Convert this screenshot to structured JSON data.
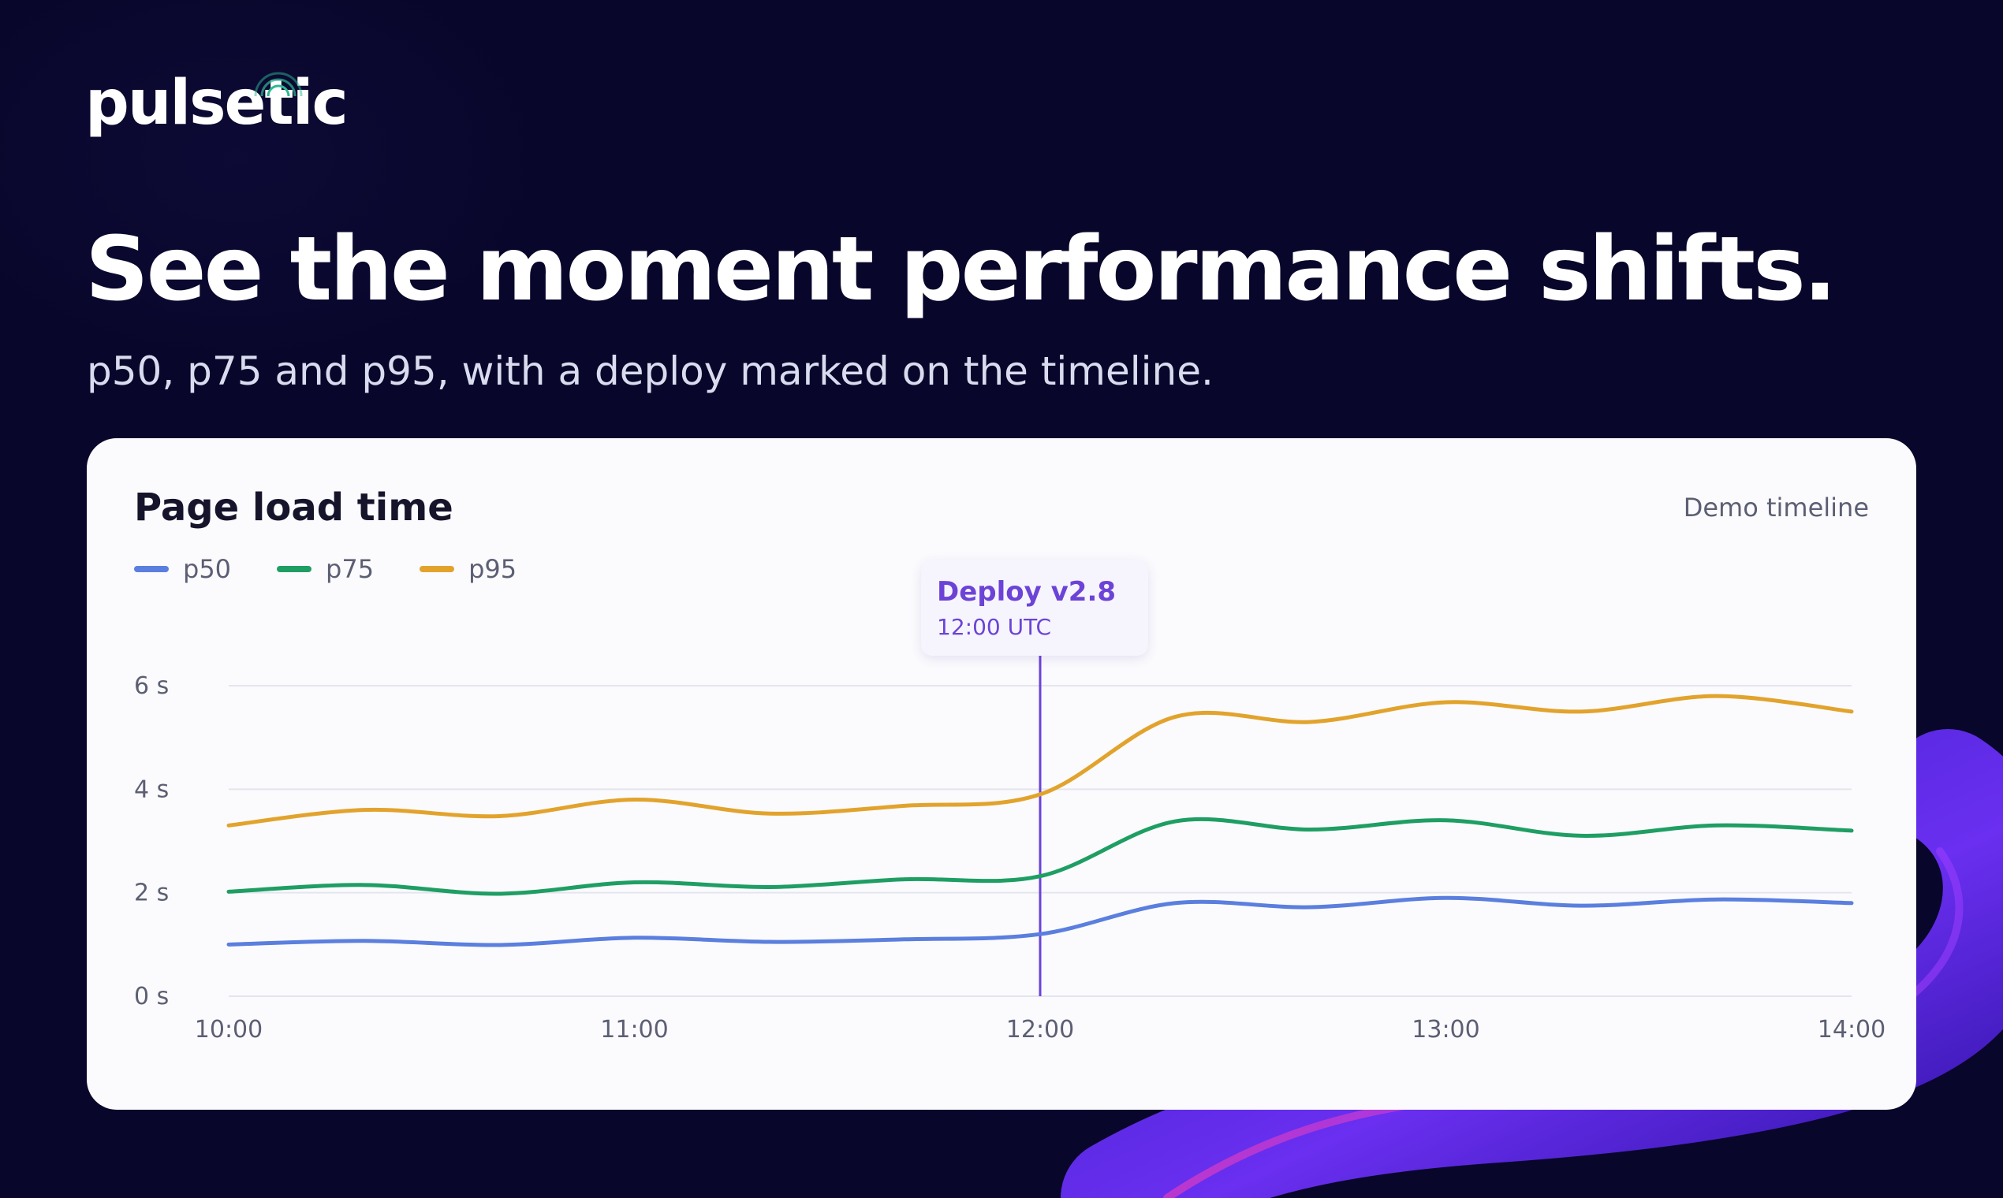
{
  "brand": {
    "name": "pulsetic",
    "accent": "#2fb893"
  },
  "hero": {
    "title": "See the moment performance shifts.",
    "subtitle": "p50, p75 and p95, with a deploy marked on the timeline."
  },
  "card": {
    "title": "Page load time",
    "note": "Demo timeline"
  },
  "chart_data": {
    "type": "line",
    "title": "Page load time",
    "xlabel": "",
    "ylabel": "",
    "x": [
      "10:00",
      "10:20",
      "10:40",
      "11:00",
      "11:20",
      "11:40",
      "12:00",
      "12:20",
      "12:40",
      "13:00",
      "13:20",
      "13:40",
      "14:00"
    ],
    "xticks": [
      "10:00",
      "11:00",
      "12:00",
      "13:00",
      "14:00"
    ],
    "yticks": [
      "0 s",
      "2 s",
      "4 s",
      "6 s"
    ],
    "ylim": [
      0,
      6
    ],
    "grid": true,
    "legend": "top-left",
    "series": [
      {
        "name": "p50",
        "color": "#5b7fde",
        "values": [
          1.0,
          1.07,
          0.99,
          1.13,
          1.05,
          1.1,
          1.2,
          1.8,
          1.72,
          1.9,
          1.75,
          1.87,
          1.8
        ]
      },
      {
        "name": "p75",
        "color": "#1f9e64",
        "values": [
          2.02,
          2.15,
          1.98,
          2.2,
          2.11,
          2.26,
          2.32,
          3.38,
          3.22,
          3.4,
          3.1,
          3.3,
          3.2
        ]
      },
      {
        "name": "p95",
        "color": "#e2a32d",
        "values": [
          3.3,
          3.6,
          3.48,
          3.8,
          3.53,
          3.68,
          3.9,
          5.4,
          5.3,
          5.68,
          5.5,
          5.8,
          5.5
        ]
      }
    ],
    "annotation": {
      "x": "12:00",
      "label": "Deploy v2.8",
      "sublabel": "12:00 UTC",
      "color": "#6c43d6"
    }
  }
}
